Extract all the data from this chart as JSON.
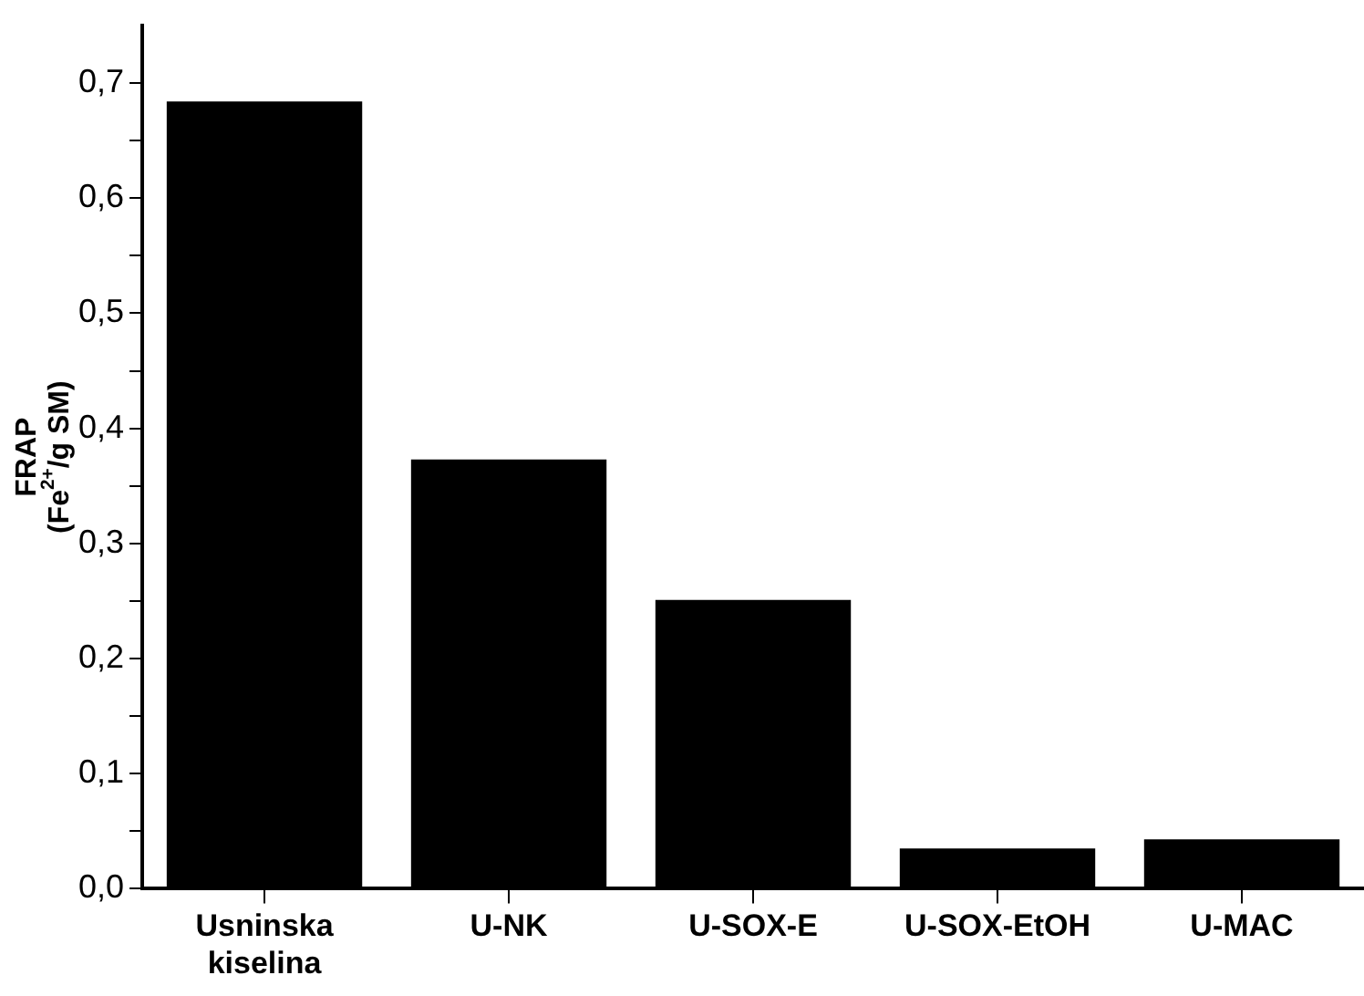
{
  "chart_data": {
    "type": "bar",
    "ylabel": "FRAP\n(Fe$^{2+}$/g SM)",
    "categories": [
      "Usninska kiselina",
      "U-NK",
      "U-SOX-E",
      "U-SOX-EtOH",
      "U-MAC"
    ],
    "values": [
      0.684,
      0.373,
      0.251,
      0.035,
      0.043
    ],
    "color": "#000000",
    "ylim": [
      0,
      0.75
    ],
    "yticks": [
      {
        "value": 0,
        "label": "0,0"
      },
      {
        "value": 0.05,
        "label": null
      },
      {
        "value": 0.1,
        "label": "0,1"
      },
      {
        "value": 0.15,
        "label": null
      },
      {
        "value": 0.2,
        "label": "0,2"
      },
      {
        "value": 0.25,
        "label": null
      },
      {
        "value": 0.3,
        "label": "0,3"
      },
      {
        "value": 0.35,
        "label": null
      },
      {
        "value": 0.4,
        "label": "0,4"
      },
      {
        "value": 0.45,
        "label": null
      },
      {
        "value": 0.5,
        "label": "0,5"
      },
      {
        "value": 0.55,
        "label": null
      },
      {
        "value": 0.6,
        "label": "0,6"
      },
      {
        "value": 0.65,
        "label": null
      },
      {
        "value": 0.7,
        "label": "0,7"
      }
    ],
    "grid": false,
    "legend": false
  }
}
